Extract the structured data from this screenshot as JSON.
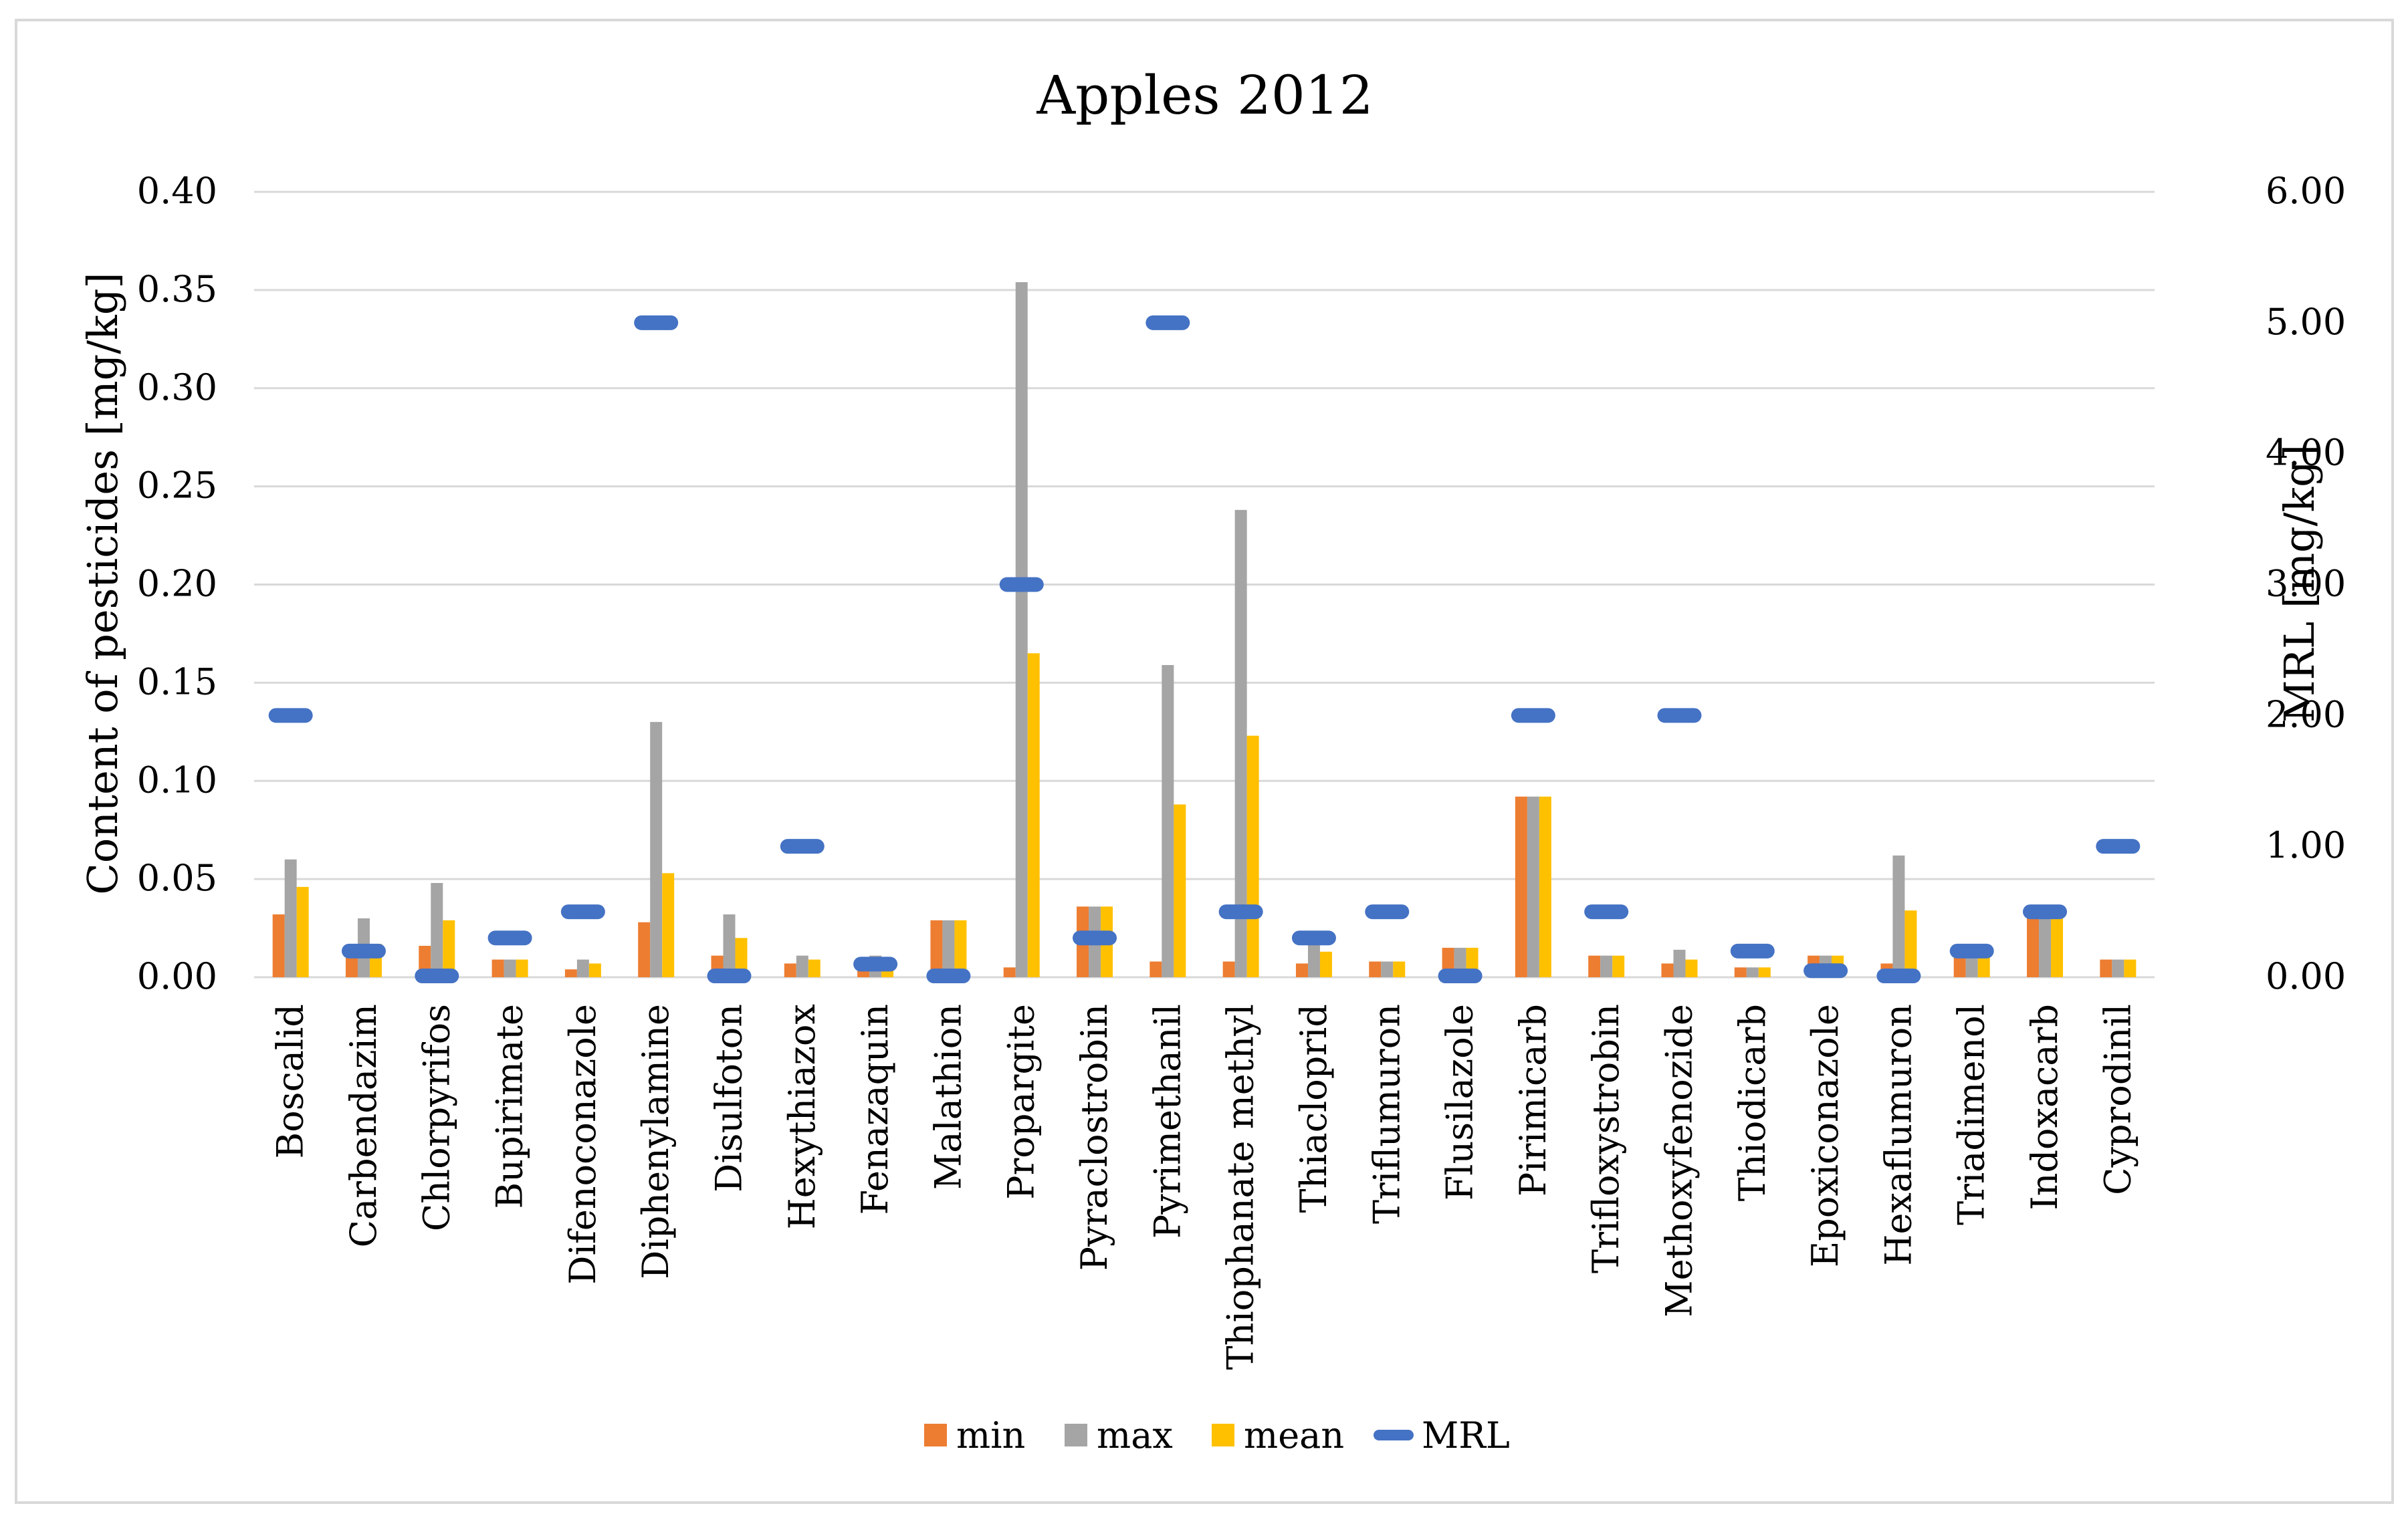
{
  "chart_data": {
    "type": "bar",
    "title": "Apples 2012",
    "ylabel": "Content of pesticides [mg/kg]",
    "y2label": "MRL [mg/kg]",
    "ylim": [
      0,
      0.4
    ],
    "y2lim": [
      0,
      6
    ],
    "yticks": [
      "0.00",
      "0.05",
      "0.10",
      "0.15",
      "0.20",
      "0.25",
      "0.30",
      "0.35",
      "0.40"
    ],
    "y2ticks": [
      "0.00",
      "1.00",
      "2.00",
      "3.00",
      "4.00",
      "5.00",
      "6.00"
    ],
    "grid": true,
    "legend_position": "bottom",
    "categories": [
      "Boscalid",
      "Carbendazim",
      "Chlorpyrifos",
      "Bupirimate",
      "Difenoconazole",
      "Diphenylamine",
      "Disulfoton",
      "Hexythiazox",
      "Fenazaquin",
      "Malathion",
      "Propargite",
      "Pyraclostrobin",
      "Pyrimethanil",
      "Thiophanate methyl",
      "Thiacloprid",
      "Triflumuron",
      "Flusilazole",
      "Pirimicarb",
      "Trifloxystrobin",
      "Methoxyfenozide",
      "Thiodicarb",
      "Epoxiconazole",
      "Hexaflumuron",
      "Triadimenol",
      "Indoxacarb",
      "Cyprodinil"
    ],
    "series": [
      {
        "name": "min",
        "type": "bar",
        "axis": "left",
        "color": "#ED7D31",
        "values": [
          0.032,
          0.012,
          0.016,
          0.009,
          0.004,
          0.028,
          0.011,
          0.007,
          0.008,
          0.029,
          0.005,
          0.036,
          0.008,
          0.008,
          0.007,
          0.008,
          0.015,
          0.092,
          0.011,
          0.007,
          0.005,
          0.011,
          0.007,
          0.012,
          0.033,
          0.009
        ]
      },
      {
        "name": "max",
        "type": "bar",
        "axis": "left",
        "color": "#A5A5A5",
        "values": [
          0.06,
          0.03,
          0.048,
          0.009,
          0.009,
          0.13,
          0.032,
          0.011,
          0.011,
          0.029,
          0.354,
          0.036,
          0.159,
          0.238,
          0.02,
          0.008,
          0.015,
          0.092,
          0.011,
          0.014,
          0.005,
          0.011,
          0.062,
          0.012,
          0.033,
          0.009
        ]
      },
      {
        "name": "mean",
        "type": "bar",
        "axis": "left",
        "color": "#FFC000",
        "values": [
          0.046,
          0.017,
          0.029,
          0.009,
          0.007,
          0.053,
          0.02,
          0.009,
          0.009,
          0.029,
          0.165,
          0.036,
          0.088,
          0.123,
          0.013,
          0.008,
          0.015,
          0.092,
          0.011,
          0.009,
          0.005,
          0.011,
          0.034,
          0.012,
          0.033,
          0.009
        ]
      },
      {
        "name": "MRL",
        "type": "marker",
        "axis": "right",
        "color": "#4472C4",
        "values": [
          2.0,
          0.2,
          0.01,
          0.3,
          0.5,
          5.0,
          0.01,
          1.0,
          0.1,
          0.01,
          3.0,
          0.3,
          5.0,
          0.5,
          0.3,
          0.5,
          0.01,
          2.0,
          0.5,
          2.0,
          0.2,
          0.05,
          0.01,
          0.2,
          0.5,
          1.0
        ]
      }
    ]
  }
}
